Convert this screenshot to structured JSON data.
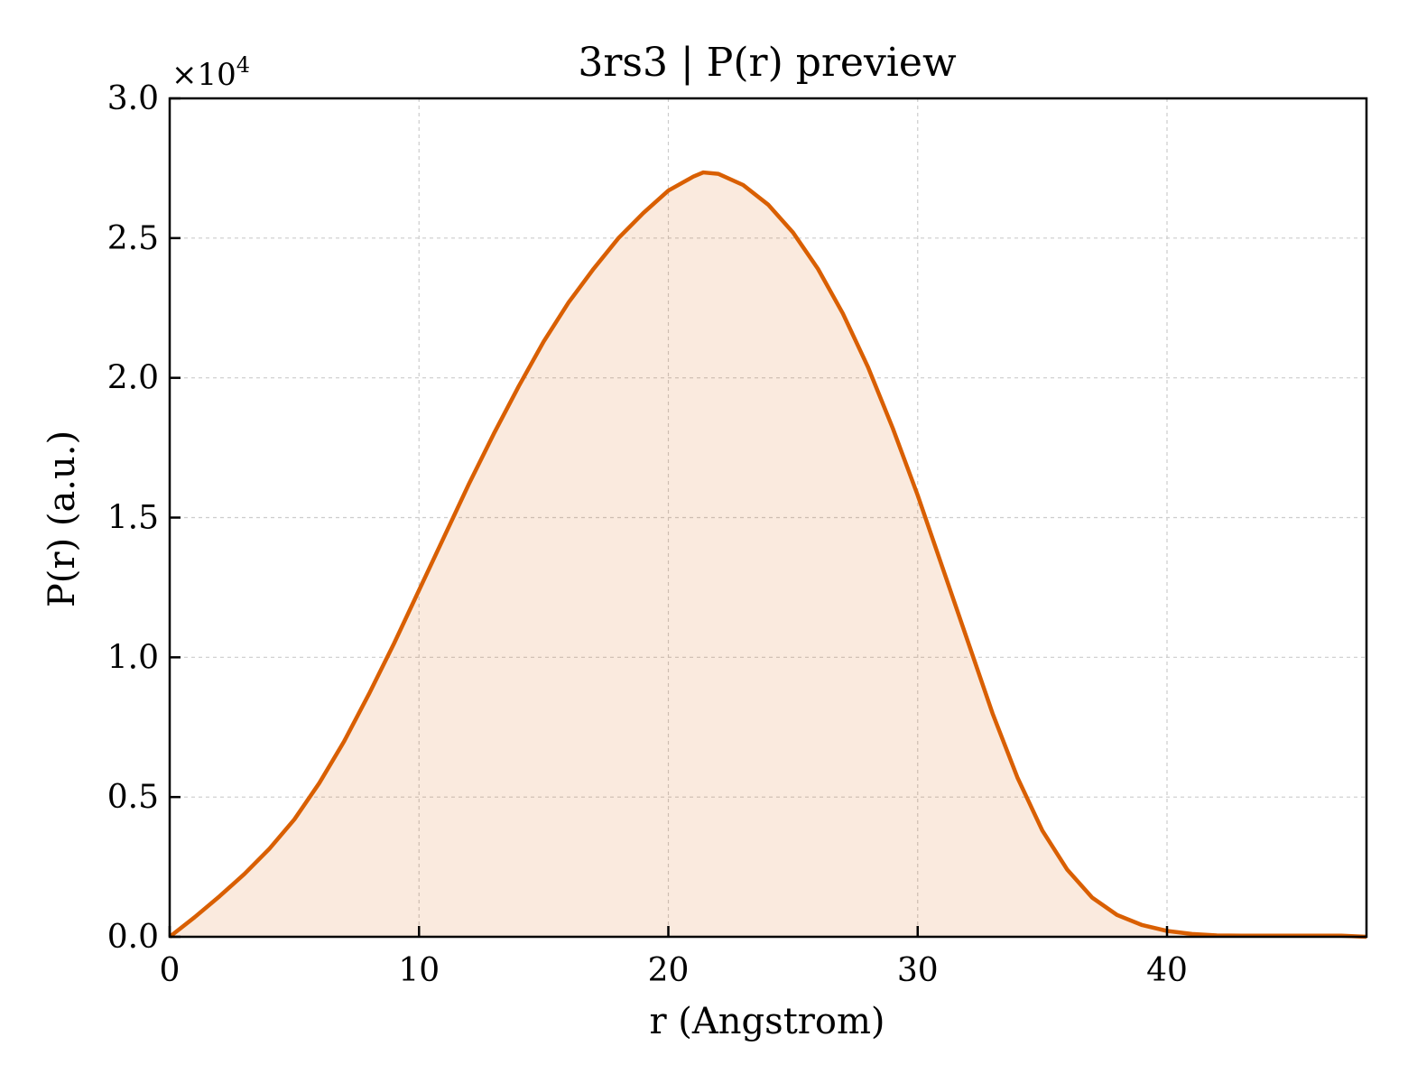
{
  "chart_data": {
    "type": "area",
    "title": "3rs3 | P(r) preview",
    "xlabel": "r (Angstrom)",
    "ylabel": "P(r) (a.u.)",
    "y_offset_label": "×10",
    "y_offset_exponent": "4",
    "xlim": [
      0,
      48
    ],
    "ylim": [
      0,
      30000
    ],
    "x_ticks": [
      0,
      10,
      20,
      30,
      40
    ],
    "x_tick_labels": [
      "0",
      "10",
      "20",
      "30",
      "40"
    ],
    "y_ticks": [
      0,
      5000,
      10000,
      15000,
      20000,
      25000,
      30000
    ],
    "y_tick_labels": [
      "0.0",
      "0.5",
      "1.0",
      "1.5",
      "2.0",
      "2.5",
      "3.0"
    ],
    "grid": true,
    "series": [
      {
        "color": "#d95f02",
        "fill_color": "#d95f02",
        "fill_opacity": 0.13,
        "x": [
          0,
          1,
          2,
          3,
          4,
          5,
          6,
          7,
          8,
          9,
          10,
          11,
          12,
          13,
          14,
          15,
          16,
          17,
          18,
          19,
          20,
          21,
          21.4,
          22,
          23,
          24,
          25,
          26,
          27,
          28,
          29,
          30,
          31,
          32,
          33,
          34,
          35,
          36,
          37,
          38,
          39,
          40,
          41,
          42,
          43,
          44,
          45,
          46,
          47,
          48
        ],
        "y": [
          0,
          700,
          1450,
          2250,
          3150,
          4200,
          5500,
          7000,
          8700,
          10500,
          12400,
          14300,
          16200,
          18000,
          19700,
          21300,
          22700,
          23900,
          25000,
          25900,
          26700,
          27200,
          27350,
          27300,
          26900,
          26200,
          25200,
          23900,
          22300,
          20400,
          18200,
          15800,
          13200,
          10600,
          8000,
          5700,
          3800,
          2400,
          1400,
          780,
          420,
          210,
          100,
          50,
          40,
          40,
          40,
          40,
          40,
          0
        ]
      }
    ]
  }
}
